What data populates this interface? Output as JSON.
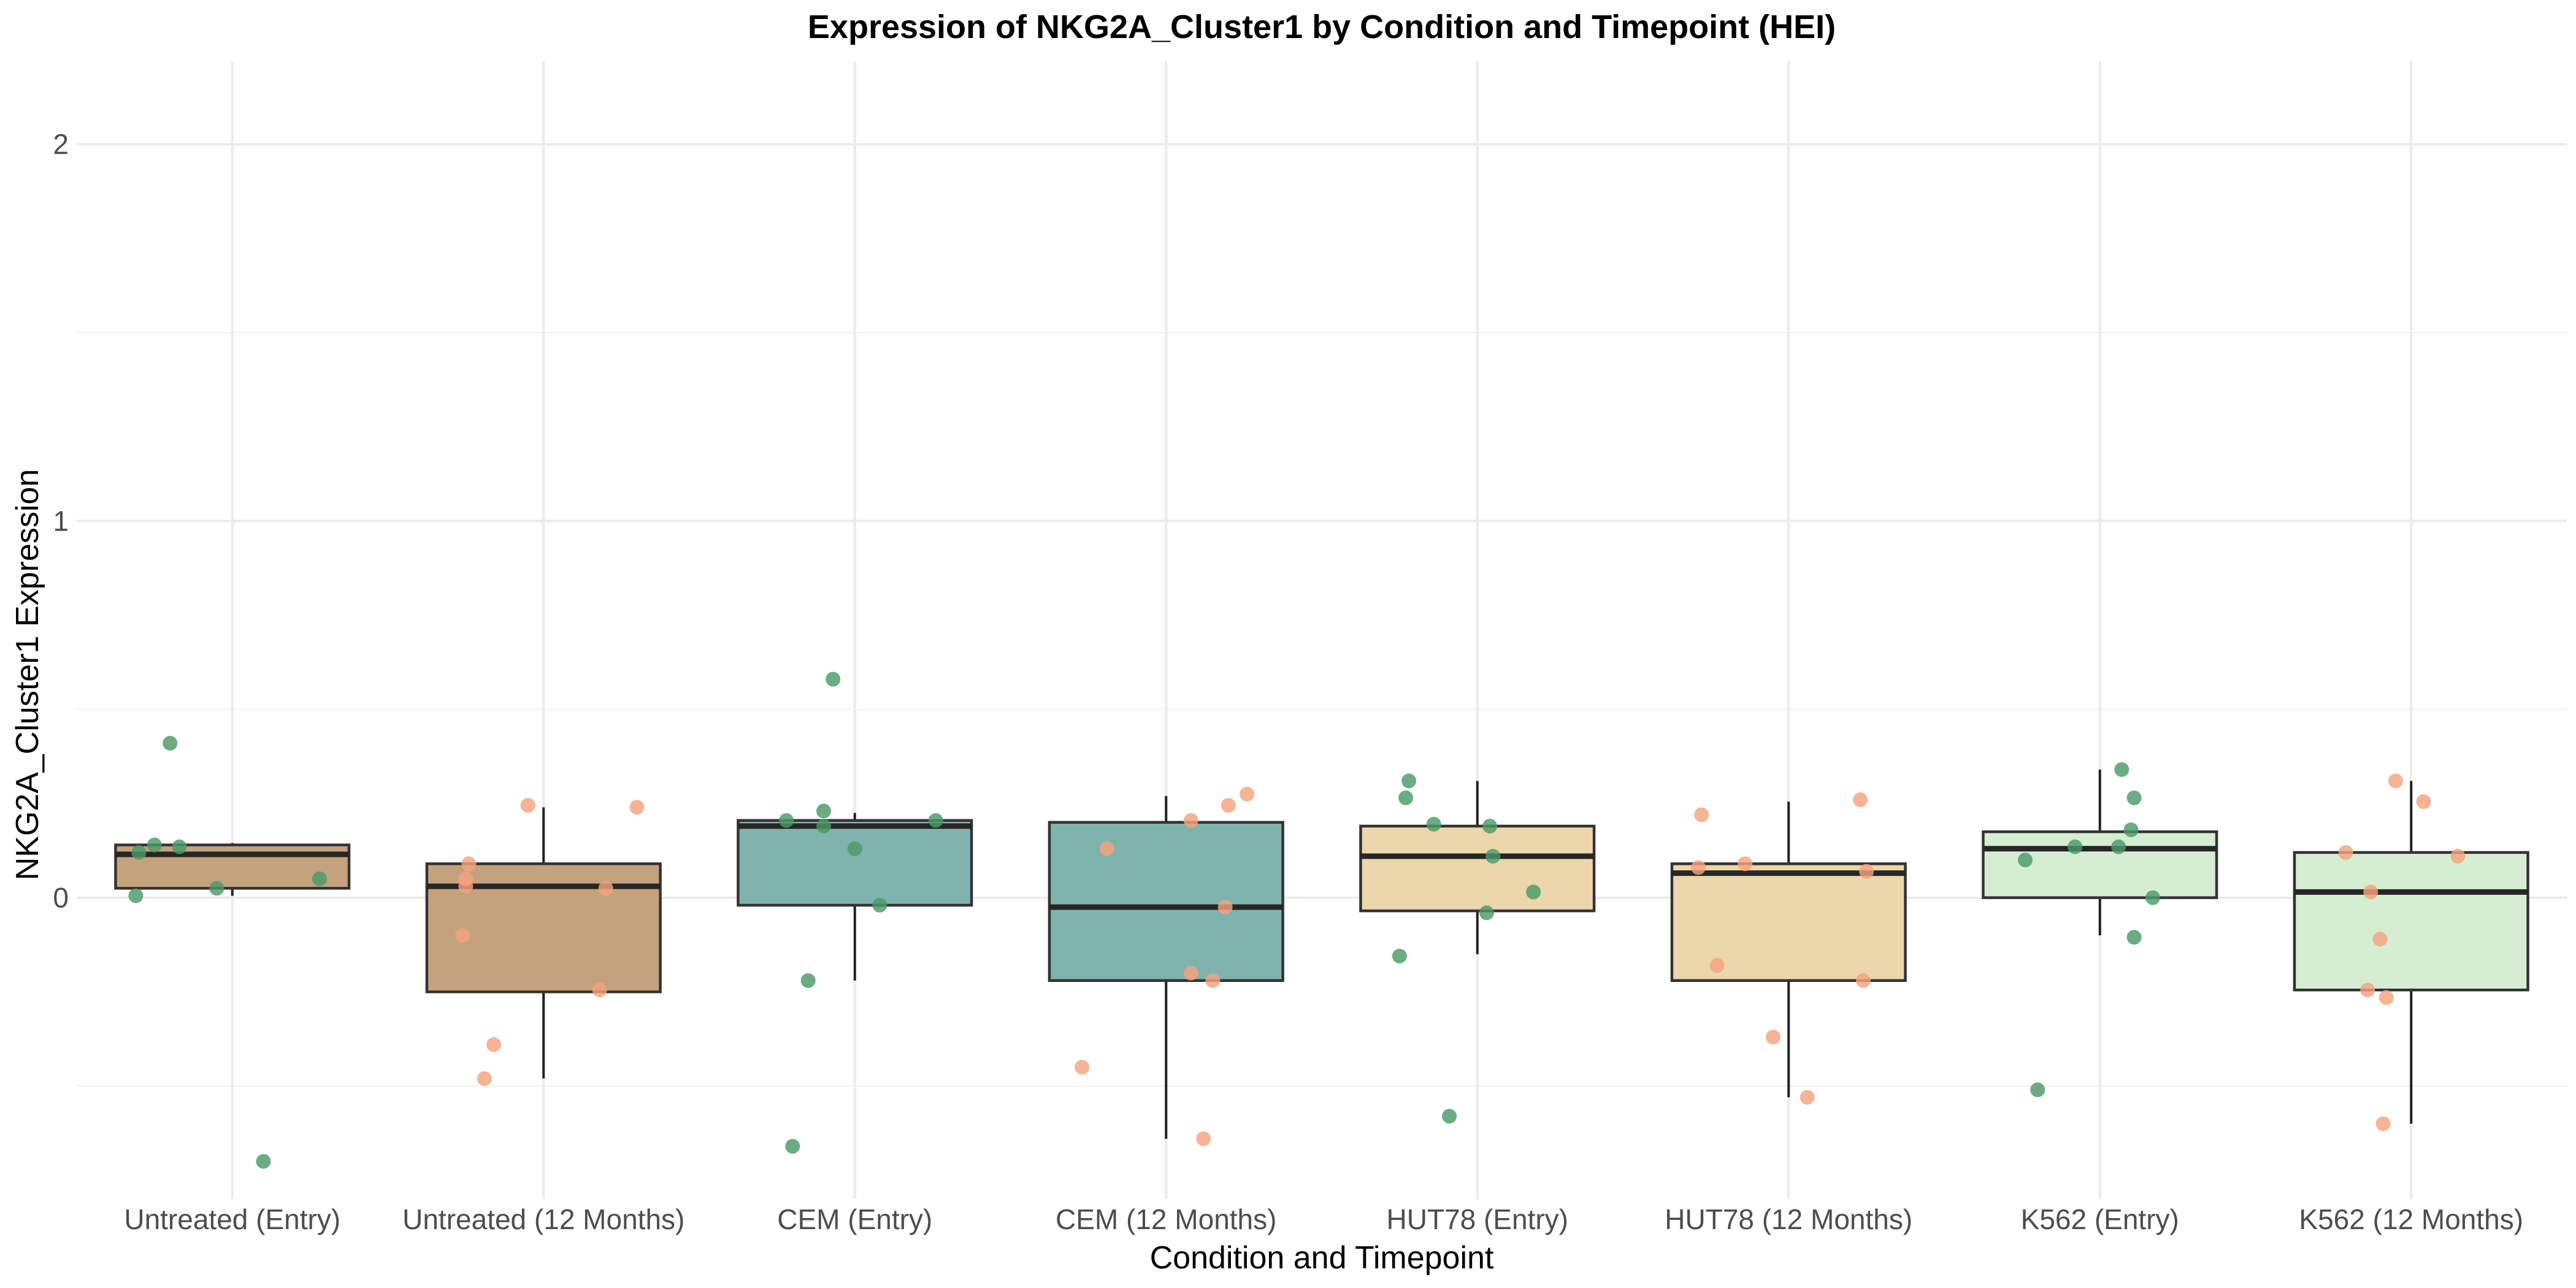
{
  "chart_data": {
    "type": "box",
    "title": "Expression of NKG2A_Cluster1 by Condition and Timepoint (HEI)",
    "xlabel": "Condition and Timepoint",
    "ylabel": "NKG2A_Cluster1 Expression",
    "ylim": [
      -0.8,
      2.22
    ],
    "yticks": [
      0,
      1,
      2
    ],
    "grid": true,
    "legend": "none",
    "categories": [
      "Untreated (Entry)",
      "Untreated (12 Months)",
      "CEM (Entry)",
      "CEM (12 Months)",
      "HUT78 (Entry)",
      "HUT78 (12 Months)",
      "K562 (Entry)",
      "K562 (12 Months)"
    ],
    "box_colors": [
      "#c4a27e",
      "#c4a27e",
      "#7fb3ae",
      "#7fb3ae",
      "#ecd6ab",
      "#ecd6ab",
      "#d5eed2",
      "#d5eed2"
    ],
    "point_colors": {
      "Entry": "#4a9a68",
      "12 Months": "#f5a27e"
    },
    "boxes": [
      {
        "q1": 0.025,
        "median": 0.115,
        "q3": 0.14,
        "whisker_low": 0.005,
        "whisker_high": 0.145
      },
      {
        "q1": -0.25,
        "median": 0.03,
        "q3": 0.09,
        "whisker_low": -0.48,
        "whisker_high": 0.24
      },
      {
        "q1": -0.02,
        "median": 0.19,
        "q3": 0.205,
        "whisker_low": -0.22,
        "whisker_high": 0.225
      },
      {
        "q1": -0.22,
        "median": -0.025,
        "q3": 0.2,
        "whisker_low": -0.64,
        "whisker_high": 0.27
      },
      {
        "q1": -0.035,
        "median": 0.11,
        "q3": 0.19,
        "whisker_low": -0.15,
        "whisker_high": 0.31
      },
      {
        "q1": -0.22,
        "median": 0.065,
        "q3": 0.09,
        "whisker_low": -0.53,
        "whisker_high": 0.255
      },
      {
        "q1": 0.0,
        "median": 0.13,
        "q3": 0.175,
        "whisker_low": -0.1,
        "whisker_high": 0.34
      },
      {
        "q1": -0.245,
        "median": 0.015,
        "q3": 0.12,
        "whisker_low": -0.6,
        "whisker_high": 0.31
      }
    ],
    "points": [
      {
        "group": "Entry",
        "values": [
          0.41,
          0.14,
          0.135,
          0.12,
          0.05,
          0.025,
          0.005,
          -0.7
        ],
        "offsets": [
          -0.2,
          -0.25,
          -0.17,
          -0.3,
          0.28,
          -0.05,
          -0.31,
          0.1
        ]
      },
      {
        "group": "12 Months",
        "values": [
          0.245,
          0.24,
          0.09,
          0.05,
          0.03,
          0.025,
          -0.1,
          -0.245,
          -0.39,
          -0.48
        ],
        "offsets": [
          -0.05,
          0.3,
          -0.24,
          -0.25,
          -0.25,
          0.2,
          -0.26,
          0.18,
          -0.16,
          -0.19
        ]
      },
      {
        "group": "Entry",
        "values": [
          0.58,
          0.23,
          0.205,
          0.205,
          0.19,
          0.13,
          -0.02,
          -0.22,
          -0.66
        ],
        "offsets": [
          -0.07,
          -0.1,
          -0.22,
          0.26,
          -0.1,
          0.0,
          0.08,
          -0.15,
          -0.2
        ]
      },
      {
        "group": "12 Months",
        "values": [
          0.275,
          0.245,
          0.205,
          0.13,
          -0.025,
          -0.2,
          -0.22,
          -0.45,
          -0.64
        ],
        "offsets": [
          0.26,
          0.2,
          0.08,
          -0.19,
          0.19,
          0.08,
          0.15,
          -0.27,
          0.12
        ]
      },
      {
        "group": "Entry",
        "values": [
          0.31,
          0.265,
          0.195,
          0.19,
          0.11,
          0.015,
          -0.04,
          -0.155,
          -0.58
        ],
        "offsets": [
          -0.22,
          -0.23,
          -0.14,
          0.04,
          0.05,
          0.18,
          0.03,
          -0.25,
          -0.09
        ]
      },
      {
        "group": "12 Months",
        "values": [
          0.26,
          0.22,
          0.09,
          0.08,
          0.07,
          -0.18,
          -0.22,
          -0.37,
          -0.53
        ],
        "offsets": [
          0.23,
          -0.28,
          -0.14,
          -0.29,
          0.25,
          -0.23,
          0.24,
          -0.05,
          0.06
        ]
      },
      {
        "group": "Entry",
        "values": [
          0.34,
          0.265,
          0.18,
          0.135,
          0.135,
          0.1,
          0.0,
          -0.105,
          -0.51
        ],
        "offsets": [
          0.07,
          0.11,
          0.1,
          -0.08,
          0.06,
          -0.24,
          0.17,
          0.11,
          -0.2
        ]
      },
      {
        "group": "12 Months",
        "values": [
          0.31,
          0.255,
          0.12,
          0.11,
          0.015,
          -0.11,
          -0.245,
          -0.265,
          -0.6
        ],
        "offsets": [
          -0.05,
          0.04,
          -0.21,
          0.15,
          -0.13,
          -0.1,
          -0.14,
          -0.08,
          -0.09
        ]
      }
    ]
  }
}
